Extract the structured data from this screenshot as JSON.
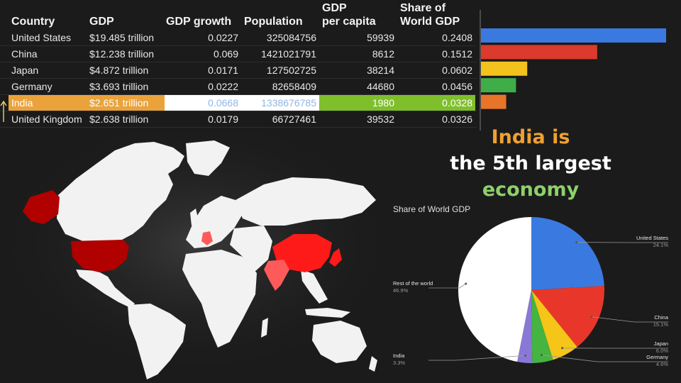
{
  "table": {
    "headers": [
      "Country",
      "GDP",
      "GDP growth",
      "Population",
      "GDP\nper capita",
      "Share of\nWorld GDP"
    ],
    "rows": [
      [
        "United States",
        "$19.485 trillion",
        "0.0227",
        "325084756",
        "59939",
        "0.2408"
      ],
      [
        "China",
        "$12.238 trillion",
        "0.069",
        "1421021791",
        "8612",
        "0.1512"
      ],
      [
        "Japan",
        "$4.872 trillion",
        "0.0171",
        "127502725",
        "38214",
        "0.0602"
      ],
      [
        "Germany",
        "$3.693 trillion",
        "0.0222",
        "82658409",
        "44680",
        "0.0456"
      ],
      [
        "India",
        "$2.651 trillion",
        "0.0668",
        "1338676785",
        "1980",
        "0.0328"
      ],
      [
        "United Kingdom",
        "$2.638 trillion",
        "0.0179",
        "66727461",
        "39532",
        "0.0326"
      ]
    ],
    "highlight_row": 4
  },
  "headline": {
    "line1": "India is",
    "line2": "the 5th largest",
    "line3": "economy",
    "color_line1": "#f0a030",
    "color_line2": "#ffffff",
    "color_line3": "#8ed06a"
  },
  "chart_data": [
    {
      "type": "bar",
      "orientation": "horizontal",
      "categories": [
        "United States",
        "China",
        "Japan",
        "Germany",
        "India"
      ],
      "values": [
        0.2408,
        0.1512,
        0.0602,
        0.0456,
        0.0328
      ],
      "colors": [
        "#3a7ae0",
        "#db3a2c",
        "#f3c21c",
        "#3fae49",
        "#e8742a"
      ],
      "title": "",
      "xlabel": "",
      "ylabel": "",
      "grid": false,
      "legend": "none"
    },
    {
      "type": "pie",
      "title": "Share of World GDP",
      "categories": [
        "United States",
        "China",
        "Japan",
        "Germany",
        "India",
        "Rest of the world"
      ],
      "values": [
        24.1,
        15.1,
        6.0,
        4.6,
        3.3,
        46.9
      ],
      "labels": [
        "24.1%",
        "15.1%",
        "6.0%",
        "4.6%",
        "3.3%",
        "46.9%"
      ],
      "colors": [
        "#3a7ae0",
        "#e8372a",
        "#f5c518",
        "#45b440",
        "#8a78d6",
        "#ffffff"
      ],
      "legend": "callout-labels"
    }
  ],
  "map": {
    "land_color": "#f2f2f2",
    "dark_red": "#b00000",
    "red": "#ff1a1a",
    "pink": "#ff5a5a"
  }
}
